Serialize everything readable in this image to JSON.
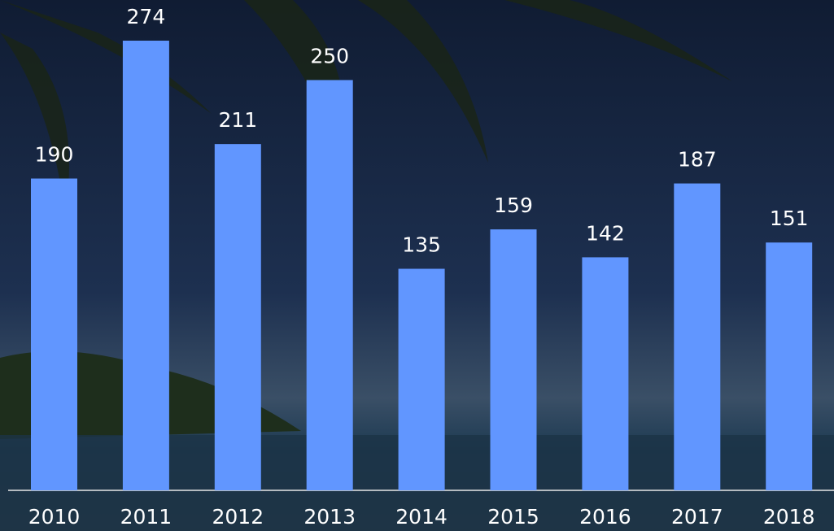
{
  "chart_data": {
    "type": "bar",
    "categories": [
      "2010",
      "2011",
      "2012",
      "2013",
      "2014",
      "2015",
      "2016",
      "2017",
      "2018"
    ],
    "values": [
      190,
      274,
      211,
      250,
      135,
      159,
      142,
      187,
      151
    ],
    "color": "#6196ff"
  }
}
